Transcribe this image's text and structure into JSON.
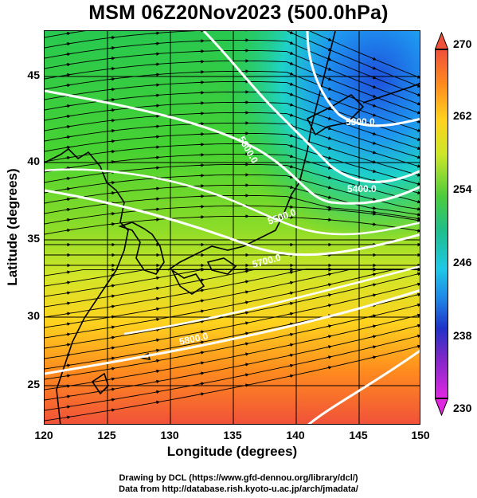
{
  "title": "MSM 06Z20Nov2023 (500.0hPa)",
  "x_axis": {
    "label": "Longitude (degrees)",
    "ticks": [
      "120",
      "125",
      "130",
      "135",
      "140",
      "145",
      "150"
    ],
    "range": [
      120,
      150
    ]
  },
  "y_axis": {
    "label": "Latitude  (degrees)",
    "ticks": [
      "25",
      "30",
      "35",
      "40",
      "45"
    ],
    "range": [
      22.5,
      47.9
    ]
  },
  "colorbar": {
    "ticks": [
      "270",
      "262",
      "254",
      "246",
      "238",
      "230"
    ],
    "range": [
      230,
      270
    ],
    "colors": [
      "#e028e0",
      "#2032c8",
      "#1ec8e6",
      "#4ccc3c",
      "#ffd21e",
      "#f0503a"
    ]
  },
  "contours": {
    "labels": [
      "5300.0",
      "5400.0",
      "5500.0",
      "5600.0",
      "5700.0",
      "5800.0"
    ],
    "color": "#ffffff"
  },
  "credits": {
    "line1": "Drawing by DCL (https://www.gfd-dennou.org/library/dcl/)",
    "line2": "Data from http://database.rish.kyoto-u.ac.jp/arch/jmadata/"
  }
}
